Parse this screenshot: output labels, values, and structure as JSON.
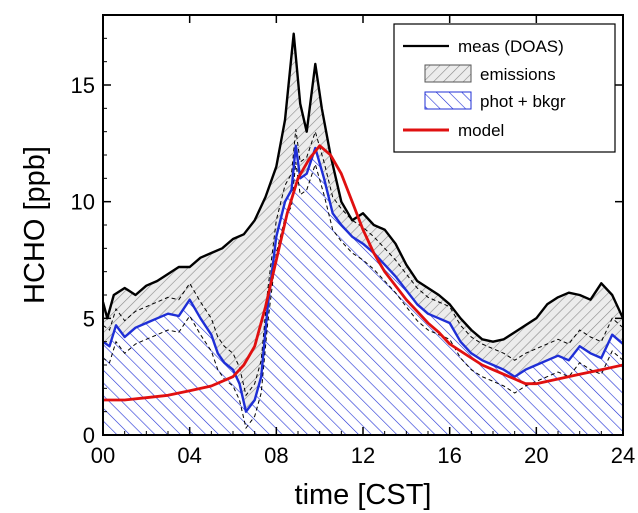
{
  "chart_data": {
    "type": "area",
    "title": "",
    "xlabel": "time [CST]",
    "ylabel": "HCHO [ppb]",
    "xlim": [
      0,
      24
    ],
    "ylim": [
      0,
      18
    ],
    "xticks": [
      "00",
      "04",
      "08",
      "12",
      "16",
      "20",
      "24"
    ],
    "yticks": [
      "0",
      "5",
      "10",
      "15"
    ],
    "legend_position": "top-right",
    "colors": {
      "meas": "#000000",
      "phot": "#1f2fd6",
      "model": "#e01010",
      "emissions_hatch": "#8a8a8a"
    },
    "legend": [
      {
        "key": "meas",
        "label": "meas (DOAS)"
      },
      {
        "key": "emissions",
        "label": "emissions"
      },
      {
        "key": "phot",
        "label": "phot + bkgr"
      },
      {
        "key": "model",
        "label": "model"
      }
    ],
    "series": [
      {
        "name": "meas (DOAS)",
        "x": [
          0,
          0.2,
          0.5,
          1,
          1.5,
          2,
          2.5,
          3,
          3.5,
          4,
          4.5,
          5,
          5.5,
          6,
          6.5,
          7,
          7.5,
          8,
          8.4,
          8.8,
          9.1,
          9.4,
          9.8,
          10.1,
          10.5,
          11,
          11.5,
          12,
          12.5,
          13,
          13.5,
          14,
          14.5,
          15,
          15.5,
          16,
          16.5,
          17,
          17.5,
          18,
          18.5,
          19,
          19.5,
          20,
          20.5,
          21,
          21.5,
          22,
          22.5,
          23,
          23.5,
          24
        ],
        "y": [
          5.7,
          5.0,
          6.0,
          6.3,
          6.0,
          6.4,
          6.6,
          6.9,
          7.2,
          7.2,
          7.6,
          7.8,
          8.0,
          8.4,
          8.6,
          9.2,
          10.2,
          11.5,
          13.5,
          17.2,
          14.2,
          13.0,
          15.9,
          14.0,
          12.0,
          10.0,
          9.2,
          9.5,
          9.0,
          8.8,
          8.2,
          7.3,
          6.6,
          6.3,
          6.0,
          5.6,
          5.0,
          4.5,
          4.1,
          4.0,
          4.1,
          4.4,
          4.7,
          5.0,
          5.6,
          5.9,
          6.1,
          6.0,
          5.8,
          6.5,
          6.0,
          5.0
        ]
      },
      {
        "name": "phot + bkgr",
        "x": [
          0,
          0.3,
          0.6,
          1,
          1.5,
          2,
          2.5,
          3,
          3.5,
          4,
          4.5,
          5,
          5.3,
          5.6,
          6,
          6.3,
          6.6,
          7,
          7.3,
          7.6,
          8,
          8.4,
          8.7,
          8.9,
          9.1,
          9.4,
          9.8,
          10.2,
          10.6,
          11,
          11.5,
          12,
          12.5,
          13,
          13.5,
          14,
          14.5,
          15,
          15.5,
          16,
          16.5,
          17,
          17.5,
          18,
          18.5,
          19,
          19.5,
          20,
          20.5,
          21,
          21.5,
          22,
          22.5,
          23,
          23.5,
          24
        ],
        "y": [
          4.0,
          3.8,
          4.7,
          4.2,
          4.6,
          4.8,
          5.0,
          5.2,
          5.1,
          5.8,
          5.0,
          4.3,
          3.5,
          3.1,
          2.8,
          2.2,
          1.0,
          1.5,
          2.5,
          5.5,
          8.5,
          10.0,
          10.5,
          12.4,
          11.0,
          11.2,
          12.3,
          11.0,
          9.5,
          9.0,
          8.5,
          8.2,
          7.8,
          7.3,
          6.8,
          6.2,
          5.6,
          5.2,
          5.0,
          4.8,
          4.0,
          3.5,
          3.2,
          3.0,
          2.8,
          2.5,
          2.8,
          3.0,
          3.2,
          3.4,
          3.2,
          3.8,
          3.5,
          3.3,
          4.3,
          3.9
        ]
      },
      {
        "name": "model",
        "x": [
          0,
          1,
          2,
          3,
          4,
          5,
          5.5,
          6,
          6.5,
          7,
          7.5,
          8,
          8.5,
          9,
          9.5,
          10,
          10.5,
          11,
          11.5,
          12,
          12.5,
          13,
          13.5,
          14,
          14.5,
          15,
          15.5,
          16,
          16.5,
          17,
          17.5,
          18,
          18.5,
          19,
          19.5,
          20,
          21,
          22,
          23,
          24
        ],
        "y": [
          1.5,
          1.5,
          1.6,
          1.7,
          1.9,
          2.1,
          2.3,
          2.5,
          3.0,
          3.8,
          5.5,
          7.5,
          9.5,
          11.0,
          11.8,
          12.4,
          12.0,
          11.2,
          10.0,
          8.8,
          7.8,
          7.0,
          6.4,
          5.8,
          5.3,
          4.8,
          4.4,
          3.9,
          3.6,
          3.3,
          3.0,
          2.8,
          2.6,
          2.4,
          2.2,
          2.2,
          2.4,
          2.6,
          2.8,
          3.0
        ]
      }
    ]
  }
}
